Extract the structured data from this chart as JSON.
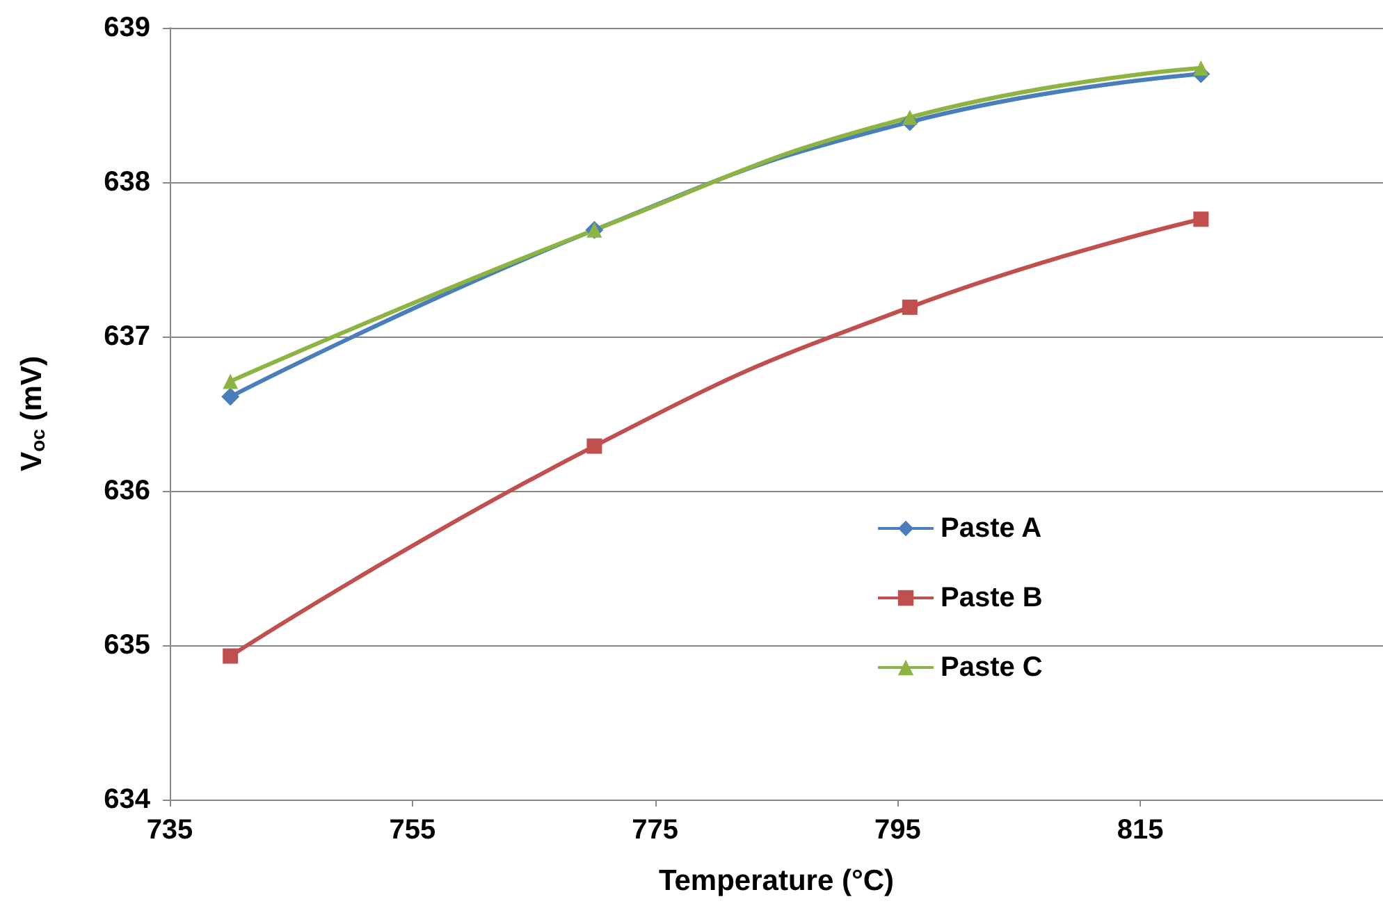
{
  "chart_data": {
    "type": "line",
    "xlabel": "Temperature (°C)",
    "ylabel": "V$_{oc}$ (mV)",
    "x": [
      740,
      770,
      796,
      820
    ],
    "series": [
      {
        "name": "Paste A",
        "color": "#4a7ebb",
        "marker": "diamond",
        "values": [
          636.61,
          637.69,
          638.39,
          638.7
        ]
      },
      {
        "name": "Paste B",
        "color": "#c0504d",
        "marker": "square",
        "values": [
          634.93,
          636.29,
          637.19,
          637.76
        ]
      },
      {
        "name": "Paste C",
        "color": "#8db443",
        "marker": "triangle",
        "values": [
          636.71,
          637.69,
          638.42,
          638.74
        ]
      }
    ],
    "xlim": [
      735,
      835
    ],
    "xticks": [
      735,
      755,
      775,
      795,
      815
    ],
    "ylim": [
      634,
      639
    ],
    "yticks": [
      634,
      635,
      636,
      637,
      638,
      639
    ],
    "grid": "y",
    "legend": "right",
    "line_style": "solid"
  }
}
